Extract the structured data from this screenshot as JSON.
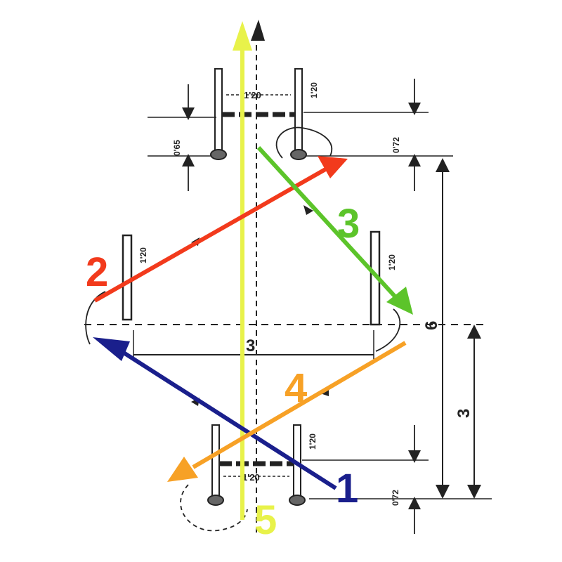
{
  "dimensions": {
    "top_pole_width": "1'20",
    "top_pole_height": "1'20",
    "top_left_gap": "0'65",
    "top_right_gap": "0'72",
    "left_pole": "1'20",
    "right_pole": "1'20",
    "middle_width": "3",
    "total_height": "6",
    "half_height": "3",
    "bottom_pole_width": "1'20",
    "bottom_pole_height": "1'20",
    "bottom_gap": "0'72"
  },
  "routes": [
    {
      "number": "1",
      "color": "#1a1f8c"
    },
    {
      "number": "2",
      "color": "#f23a1c"
    },
    {
      "number": "3",
      "color": "#5cc42a"
    },
    {
      "number": "4",
      "color": "#f7a126"
    },
    {
      "number": "5",
      "color": "#e8f24a"
    }
  ]
}
